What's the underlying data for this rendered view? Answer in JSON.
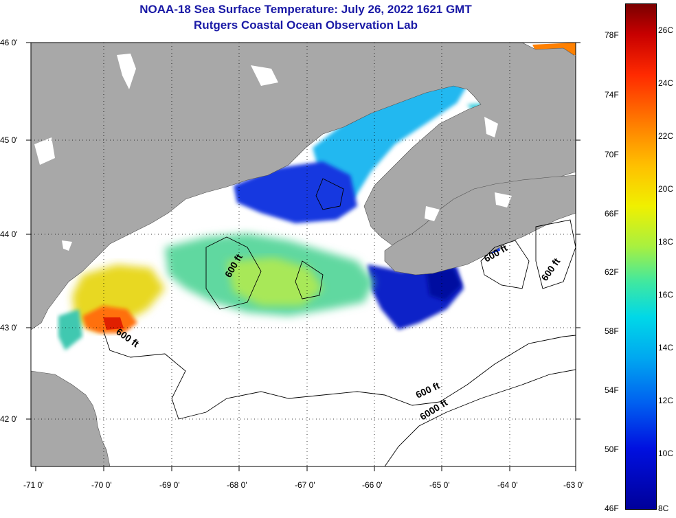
{
  "header": {
    "title_line1": "NOAA-18 Sea Surface Temperature:  July 26, 2022 1621 GMT",
    "title_line2": "Rutgers Coastal Ocean Observation Lab"
  },
  "axes": {
    "lat_labels": [
      "46 0'",
      "45 0'",
      "44 0'",
      "43 0'",
      "42 0'"
    ],
    "lon_labels": [
      "-71 0'",
      "-70 0'",
      "-69 0'",
      "-68 0'",
      "-67 0'",
      "-66 0'",
      "-65 0'",
      "-64 0'",
      "-63 0'"
    ]
  },
  "contours": {
    "labels": [
      "600 ft",
      "600 ft",
      "600 ft",
      "600 ft",
      "600 ft",
      "6000 ft"
    ]
  },
  "colorbar": {
    "fahrenheit": [
      "78F",
      "74F",
      "70F",
      "66F",
      "62F",
      "58F",
      "54F",
      "50F",
      "46F"
    ],
    "celsius": [
      "26C",
      "24C",
      "22C",
      "20C",
      "18C",
      "16C",
      "14C",
      "12C",
      "10C",
      "8C"
    ]
  },
  "colors": {
    "land": "#a8a8a8",
    "ocean_nodata": "#ffffff",
    "title": "#1a1aa6"
  }
}
